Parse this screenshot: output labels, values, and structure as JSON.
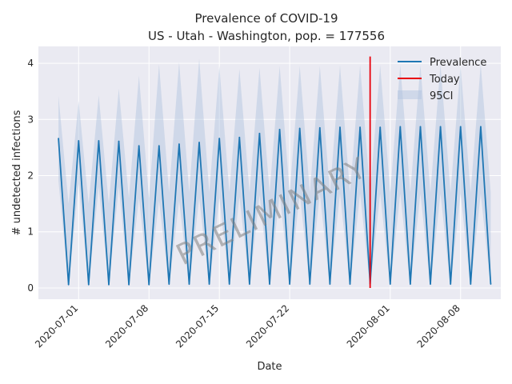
{
  "chart_data": {
    "type": "line",
    "title": "Prevalence of COVID-19",
    "subtitle": "US - Utah - Washington, pop. = 177556",
    "xlabel": "Date",
    "ylabel": "# undetected infections",
    "xlim": [
      "2020-06-27",
      "2020-08-12"
    ],
    "ylim": [
      -0.2,
      4.3
    ],
    "x_ticks": [
      "2020-07-01",
      "2020-07-08",
      "2020-07-15",
      "2020-07-22",
      "2020-08-01",
      "2020-08-08"
    ],
    "y_ticks": [
      0,
      1,
      2,
      3,
      4
    ],
    "grid": true,
    "legend_position": "top-right",
    "watermark": "PRELIMINARY",
    "today": {
      "name": "Today",
      "date": "2020-07-30",
      "y": [
        0,
        4.12
      ]
    },
    "series": [
      {
        "name": "Prevalence",
        "color": "#1f77b4",
        "x": [
          "2020-06-29",
          "2020-06-30",
          "2020-07-01",
          "2020-07-02",
          "2020-07-03",
          "2020-07-04",
          "2020-07-05",
          "2020-07-06",
          "2020-07-07",
          "2020-07-08",
          "2020-07-09",
          "2020-07-10",
          "2020-07-11",
          "2020-07-12",
          "2020-07-13",
          "2020-07-14",
          "2020-07-15",
          "2020-07-16",
          "2020-07-17",
          "2020-07-18",
          "2020-07-19",
          "2020-07-20",
          "2020-07-21",
          "2020-07-22",
          "2020-07-23",
          "2020-07-24",
          "2020-07-25",
          "2020-07-26",
          "2020-07-27",
          "2020-07-28",
          "2020-07-29",
          "2020-07-30",
          "2020-07-31",
          "2020-08-01",
          "2020-08-02",
          "2020-08-03",
          "2020-08-04",
          "2020-08-05",
          "2020-08-06",
          "2020-08-07",
          "2020-08-08",
          "2020-08-09",
          "2020-08-10",
          "2020-08-11"
        ],
        "values": [
          2.66,
          0.06,
          2.62,
          0.06,
          2.62,
          0.06,
          2.61,
          0.06,
          2.53,
          0.06,
          2.53,
          0.07,
          2.56,
          0.07,
          2.59,
          0.07,
          2.66,
          0.07,
          2.68,
          0.07,
          2.75,
          0.07,
          2.82,
          0.07,
          2.84,
          0.07,
          2.85,
          0.07,
          2.86,
          0.07,
          2.86,
          0.07,
          2.86,
          0.07,
          2.87,
          0.07,
          2.87,
          0.07,
          2.87,
          0.07,
          2.87,
          0.07,
          2.87,
          0.07
        ]
      }
    ],
    "ci": {
      "name": "95CI",
      "color": "#b0c4de",
      "upper": [
        3.42,
        1.5,
        3.33,
        1.5,
        3.43,
        1.5,
        3.55,
        1.6,
        3.78,
        1.6,
        3.98,
        1.7,
        4.02,
        1.7,
        4.08,
        1.7,
        3.95,
        1.7,
        3.9,
        1.7,
        3.92,
        1.7,
        3.95,
        1.7,
        3.95,
        1.7,
        3.95,
        1.7,
        3.96,
        1.7,
        3.97,
        1.7,
        3.97,
        1.7,
        3.97,
        1.7,
        3.97,
        1.7,
        3.97,
        1.7,
        3.97,
        1.7,
        3.98,
        1.7
      ],
      "lower": [
        1.9,
        0.02,
        1.85,
        0.02,
        1.8,
        0.02,
        1.8,
        0.02,
        1.6,
        0.02,
        1.55,
        0.02,
        1.55,
        0.02,
        1.6,
        0.02,
        1.6,
        0.02,
        1.62,
        0.02,
        1.65,
        0.02,
        1.68,
        0.02,
        1.68,
        0.02,
        1.68,
        0.02,
        1.68,
        0.02,
        1.68,
        0.02,
        1.68,
        0.02,
        1.68,
        0.02,
        1.68,
        0.02,
        1.68,
        0.02,
        1.68,
        0.02,
        1.68,
        0.02
      ]
    }
  }
}
